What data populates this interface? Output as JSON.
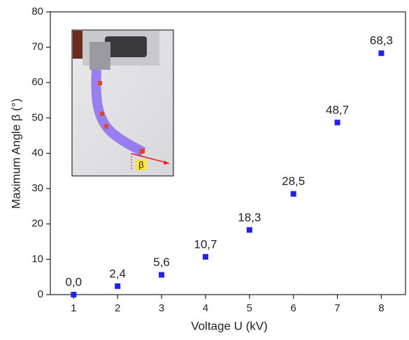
{
  "chart_data": {
    "type": "scatter",
    "x_label": "Voltage U (kV)",
    "y_label": "Maximum Angle β (°)",
    "x": [
      1,
      2,
      3,
      4,
      5,
      6,
      7,
      8
    ],
    "values": [
      0.0,
      2.4,
      5.6,
      10.7,
      18.3,
      28.5,
      48.7,
      68.3
    ],
    "value_labels": [
      "0,0",
      "2,4",
      "5,6",
      "10,7",
      "18,3",
      "28,5",
      "48,7",
      "68,3"
    ],
    "color": "#1f1fff",
    "xlim": [
      0.47,
      8.55
    ],
    "xticks": [
      1,
      2,
      3,
      4,
      5,
      6,
      7,
      8
    ],
    "ylim": [
      0,
      80
    ],
    "yticks": [
      0,
      10,
      20,
      30,
      40,
      50,
      60,
      70,
      80
    ]
  },
  "inset": {
    "label": "β"
  }
}
